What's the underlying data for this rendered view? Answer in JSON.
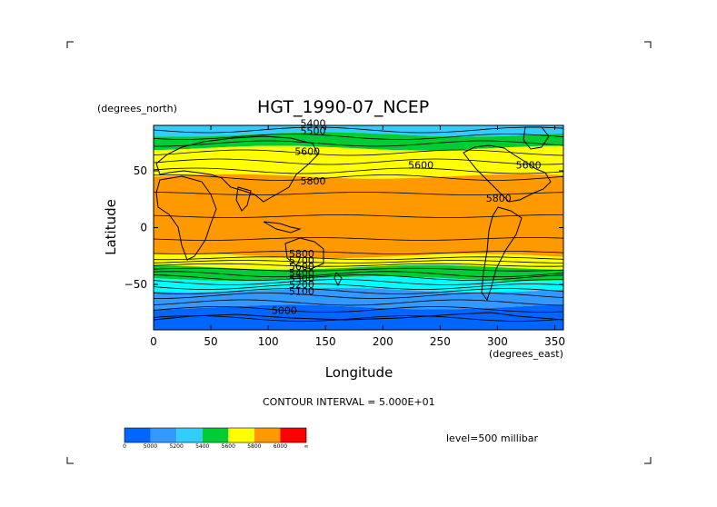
{
  "chart_data": {
    "type": "heatmap",
    "title": "HGT_1990-07_NCEP",
    "xlabel": "Longitude",
    "ylabel": "Latitude",
    "x_units": "(degrees_east)",
    "y_units": "(degrees_north)",
    "xlim": [
      0,
      357.5
    ],
    "ylim": [
      -90,
      90
    ],
    "x_ticks": [
      "0",
      "50",
      "100",
      "150",
      "200",
      "250",
      "300",
      "350"
    ],
    "y_ticks": [
      "50",
      "0",
      "-50"
    ],
    "contour_interval_text": "CONTOUR INTERVAL = 5.000E+01",
    "level_text": "level=500 millibar",
    "bands": [
      {
        "lat_from": 90,
        "lat_to": 82,
        "color": "#33ccff",
        "range": "5200-5400"
      },
      {
        "lat_from": 82,
        "lat_to": 70,
        "color": "#00cc33",
        "range": "5400-5600"
      },
      {
        "lat_from": 70,
        "lat_to": 45,
        "color": "#ffff00",
        "range": "5600-5800"
      },
      {
        "lat_from": 45,
        "lat_to": -25,
        "color": "#ff9900",
        "range": "5800-6000"
      },
      {
        "lat_from": -25,
        "lat_to": -35,
        "color": "#ffff00",
        "range": "5600-5800"
      },
      {
        "lat_from": -35,
        "lat_to": -45,
        "color": "#00cc33",
        "range": "5400-5600"
      },
      {
        "lat_from": -45,
        "lat_to": -55,
        "color": "#00ffff",
        "range": "5200-5400"
      },
      {
        "lat_from": -55,
        "lat_to": -70,
        "color": "#3399ff",
        "range": "5000-5200"
      },
      {
        "lat_from": -70,
        "lat_to": -90,
        "color": "#0066ff",
        "range": "0-5000"
      }
    ],
    "contour_labels": [
      {
        "text": "5400",
        "lon": 128,
        "lat": 89
      },
      {
        "text": "5500",
        "lon": 128,
        "lat": 82
      },
      {
        "text": "5600",
        "lon": 123,
        "lat": 64
      },
      {
        "text": "5600",
        "lon": 222,
        "lat": 52
      },
      {
        "text": "5600",
        "lon": 316,
        "lat": 52
      },
      {
        "text": "5800",
        "lon": 128,
        "lat": 38
      },
      {
        "text": "5800",
        "lon": 290,
        "lat": 23
      },
      {
        "text": "5800",
        "lon": 118,
        "lat": -26
      },
      {
        "text": "5700",
        "lon": 118,
        "lat": -32
      },
      {
        "text": "5600",
        "lon": 118,
        "lat": -37
      },
      {
        "text": "5400",
        "lon": 118,
        "lat": -43
      },
      {
        "text": "5300",
        "lon": 118,
        "lat": -48
      },
      {
        "text": "5200",
        "lon": 118,
        "lat": -53
      },
      {
        "text": "5100",
        "lon": 118,
        "lat": -59
      },
      {
        "text": "5000",
        "lon": 103,
        "lat": -76
      }
    ],
    "colorbar": {
      "colors": [
        "#0066ff",
        "#3399ff",
        "#33ccff",
        "#00cc33",
        "#ffff00",
        "#ff9900",
        "#ff0000"
      ],
      "tick_labels": [
        "0",
        "5000",
        "5200",
        "5400",
        "5600",
        "5800",
        "6000",
        "∞"
      ]
    }
  }
}
